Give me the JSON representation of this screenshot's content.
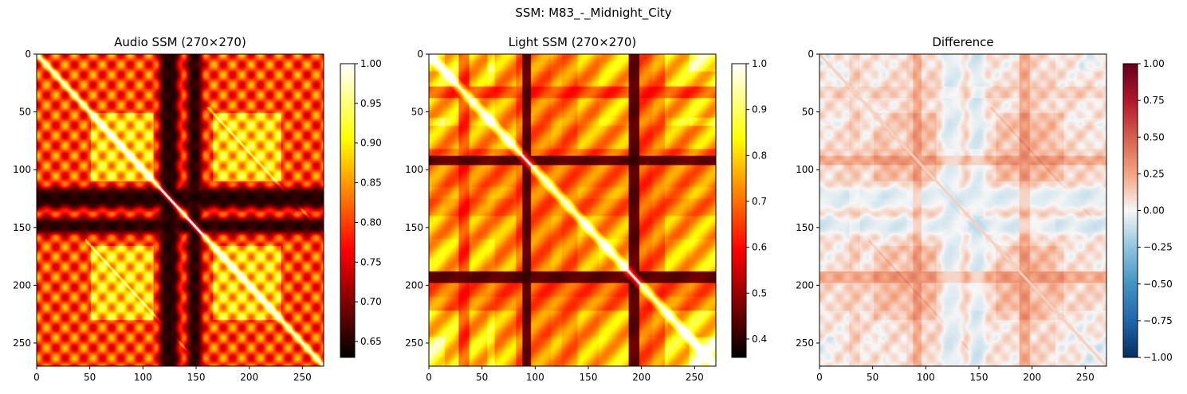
{
  "figure": {
    "suptitle": "SSM: M83_-_Midnight_City"
  },
  "chart_data": [
    {
      "type": "heatmap",
      "title": "Audio SSM (270×270)",
      "colormap": "hot",
      "n": 270,
      "xlim": [
        0,
        270
      ],
      "ylim": [
        270,
        0
      ],
      "xticks": [
        0,
        50,
        100,
        150,
        200,
        250
      ],
      "yticks": [
        0,
        50,
        100,
        150,
        200,
        250
      ],
      "colorbar": {
        "min": 0.63,
        "max": 1.0,
        "ticks": [
          0.65,
          0.7,
          0.75,
          0.8,
          0.85,
          0.9,
          0.95,
          1.0
        ],
        "tick_labels": [
          "0.65",
          "0.70",
          "0.75",
          "0.80",
          "0.85",
          "0.90",
          "0.95",
          "1.00"
        ]
      },
      "dark_bands": [
        [
          115,
          135
        ],
        [
          140,
          155
        ]
      ],
      "bright_blocks": [
        [
          50,
          110
        ],
        [
          165,
          230
        ]
      ]
    },
    {
      "type": "heatmap",
      "title": "Light SSM (270×270)",
      "colormap": "hot",
      "n": 270,
      "xlim": [
        0,
        270
      ],
      "ylim": [
        270,
        0
      ],
      "xticks": [
        0,
        50,
        100,
        150,
        200,
        250
      ],
      "yticks": [
        0,
        50,
        100,
        150,
        200,
        250
      ],
      "colorbar": {
        "min": 0.36,
        "max": 1.0,
        "ticks": [
          0.4,
          0.5,
          0.6,
          0.7,
          0.8,
          0.9,
          1.0
        ],
        "tick_labels": [
          "0.4",
          "0.5",
          "0.6",
          "0.7",
          "0.8",
          "0.9",
          "1.0"
        ]
      },
      "dark_bands": [
        [
          88,
          95
        ],
        [
          188,
          198
        ]
      ],
      "bright_blocks": [
        [
          0,
          30
        ],
        [
          245,
          270
        ]
      ]
    },
    {
      "type": "heatmap",
      "title": "Difference",
      "colormap": "RdBu_r",
      "n": 270,
      "xlim": [
        0,
        270
      ],
      "ylim": [
        270,
        0
      ],
      "xticks": [
        0,
        50,
        100,
        150,
        200,
        250
      ],
      "yticks": [
        0,
        50,
        100,
        150,
        200,
        250
      ],
      "colorbar": {
        "min": -1.0,
        "max": 1.0,
        "ticks": [
          -1.0,
          -0.75,
          -0.5,
          -0.25,
          0.0,
          0.25,
          0.5,
          0.75,
          1.0
        ],
        "tick_labels": [
          "−1.00",
          "−0.75",
          "−0.50",
          "−0.25",
          "0.00",
          "0.25",
          "0.50",
          "0.75",
          "1.00"
        ]
      }
    }
  ]
}
